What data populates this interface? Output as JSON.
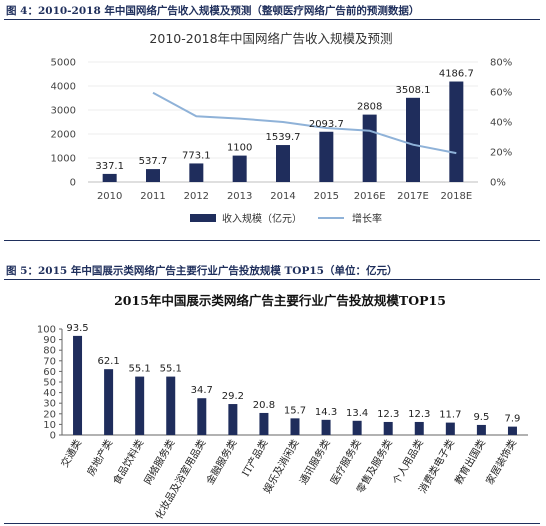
{
  "figure4": {
    "caption": "图 4：2010-2018 年中国网络广告收入规模及预测（整顿医疗网络广告前的预测数据）"
  },
  "figure5": {
    "caption": "图 5：2015 年中国展示类网络广告主要行业广告投放规模 TOP15（单位：亿元）"
  },
  "chart_data": [
    {
      "type": "bar",
      "title": "2010-2018年中国网络广告收入规模及预测",
      "categories": [
        "2010",
        "2011",
        "2012",
        "2013",
        "2014",
        "2015",
        "2016E",
        "2017E",
        "2018E"
      ],
      "series": [
        {
          "name": "收入规模（亿元）",
          "type": "bar",
          "axis": "left",
          "values": [
            337.1,
            537.7,
            773.1,
            1100,
            1539.7,
            2093.7,
            2808,
            3508.1,
            4186.7
          ],
          "labels": [
            "337.1",
            "537.7",
            "773.1",
            "1100",
            "1539.7",
            "2093.7",
            "2808",
            "3508.1",
            "4186.7"
          ]
        },
        {
          "name": "增长率",
          "type": "line",
          "axis": "right",
          "values": [
            null,
            59.5,
            43.8,
            42.3,
            40.0,
            36.0,
            34.1,
            24.9,
            19.3
          ]
        }
      ],
      "ylim": [
        0,
        5000
      ],
      "yticks": [
        "0",
        "500",
        "1000",
        "1500",
        "2000",
        "2500",
        "3000",
        "3500",
        "4000",
        "4500",
        "5000"
      ],
      "y2lim": [
        0,
        80
      ],
      "y2ticks": [
        "0%",
        "20%",
        "40%",
        "60%",
        "80%"
      ],
      "legend": "bottom",
      "colors": {
        "bar": "#1f2d5c",
        "line": "#8fb2d8"
      }
    },
    {
      "type": "bar",
      "title": "2015年中国展示类网络广告主要行业广告投放规模TOP15",
      "categories": [
        "交通类",
        "房地产类",
        "食品饮料类",
        "网络服务类",
        "化妆品及浴室用品类",
        "金融服务类",
        "IT产品类",
        "娱乐及消闲类",
        "通讯服务类",
        "医疗服务类",
        "零售及服务类",
        "个人用品类",
        "消费类电子类",
        "教育出国类",
        "家居装饰类"
      ],
      "values": [
        93.5,
        62.1,
        55.1,
        55.1,
        34.7,
        29.2,
        20.8,
        15.7,
        14.3,
        13.4,
        12.3,
        12.3,
        11.7,
        9.5,
        7.9
      ],
      "labels": [
        "93.5",
        "62.1",
        "55.1",
        "55.1",
        "34.7",
        "29.2",
        "20.8",
        "15.7",
        "14.3",
        "13.4",
        "12.3",
        "12.3",
        "11.7",
        "9.5",
        "7.9"
      ],
      "ylim": [
        0,
        100
      ],
      "yticks": [
        "0",
        "10",
        "20",
        "30",
        "40",
        "50",
        "60",
        "70",
        "80",
        "90",
        "100"
      ],
      "colors": {
        "bar": "#1f2d5c"
      }
    }
  ]
}
